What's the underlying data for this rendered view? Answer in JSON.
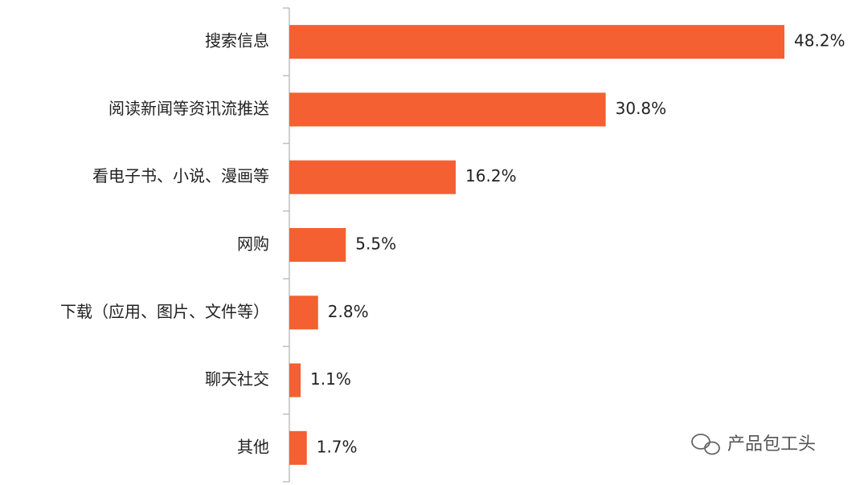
{
  "chart_data": {
    "type": "bar",
    "orientation": "horizontal",
    "categories": [
      "搜索信息",
      "阅读新闻等资讯流推送",
      "看电子书、小说、漫画等",
      "网购",
      "下载（应用、图片、文件等）",
      "聊天社交",
      "其他"
    ],
    "values": [
      48.2,
      30.8,
      16.2,
      5.5,
      2.8,
      1.1,
      1.7
    ],
    "value_labels": [
      "48.2%",
      "30.8%",
      "16.2%",
      "5.5%",
      "2.8%",
      "1.1%",
      "1.7%"
    ],
    "color": "#f46031"
  },
  "watermark": "产品包工头"
}
